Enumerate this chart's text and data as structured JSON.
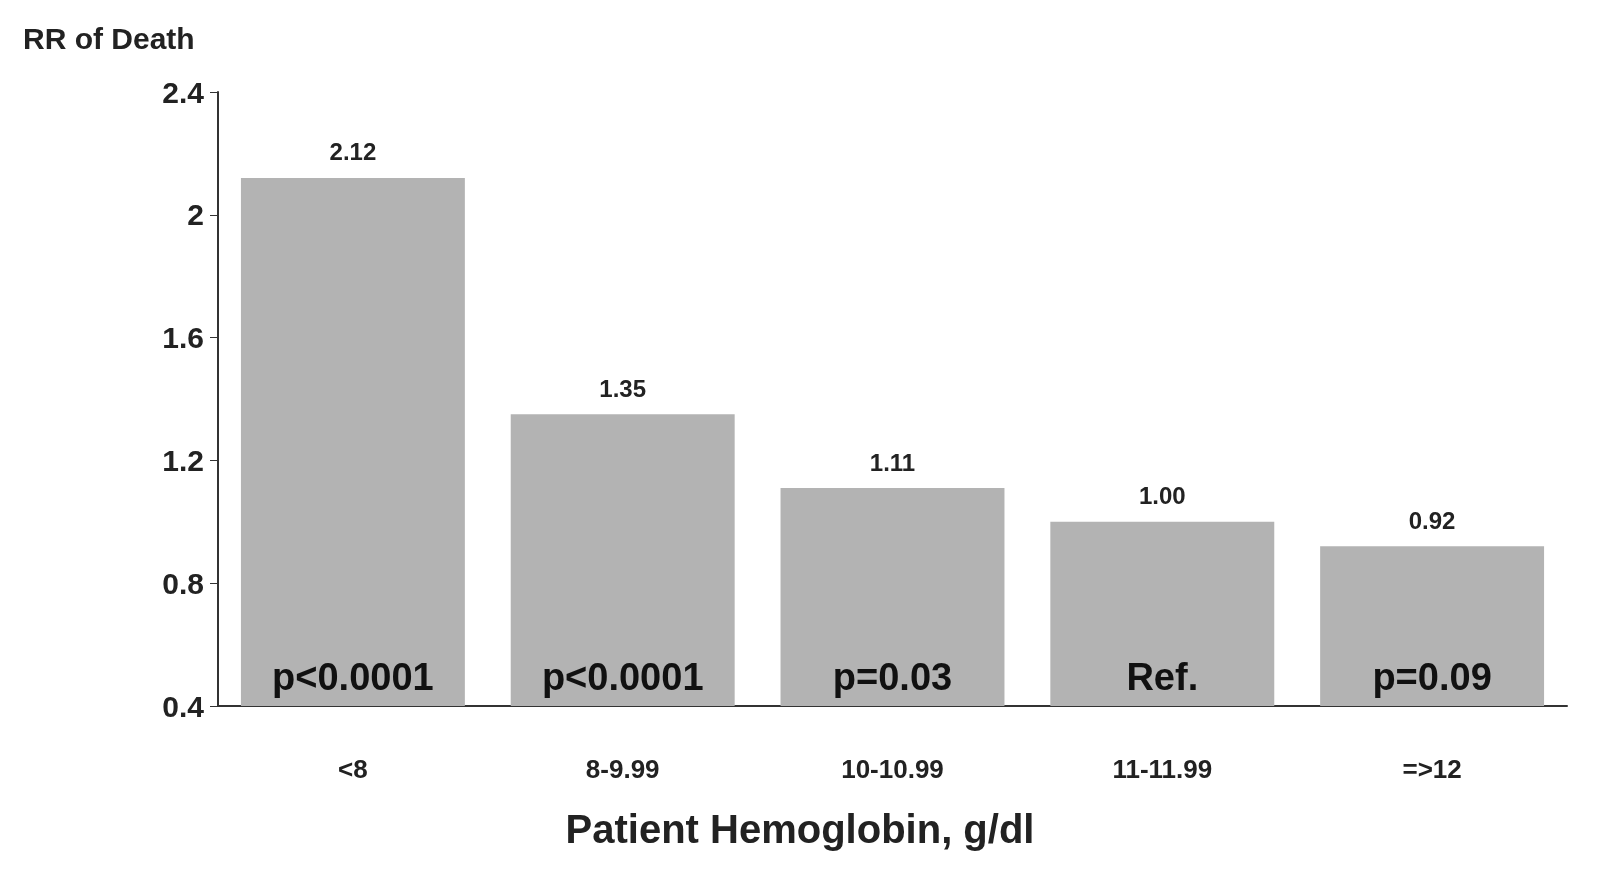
{
  "chart_data": {
    "type": "bar",
    "ylabel": "RR of Death",
    "xlabel": "Patient Hemoglobin, g/dl",
    "categories": [
      "<8",
      "8-9.99",
      "10-10.99",
      "11-11.99",
      "=>12"
    ],
    "values": [
      2.12,
      1.35,
      1.11,
      1.0,
      0.92
    ],
    "value_labels": [
      "2.12",
      "1.35",
      "1.11",
      "1.00",
      "0.92"
    ],
    "color": "#b3b3b3",
    "ylim": [
      0.4,
      2.4
    ],
    "yticks": [
      0.4,
      0.8,
      1.2,
      1.6,
      2,
      2.4
    ],
    "grid": false,
    "annotations": [
      "p<0.0001",
      "p<0.0001",
      "p=0.03",
      "Ref.",
      "p=0.09"
    ]
  }
}
